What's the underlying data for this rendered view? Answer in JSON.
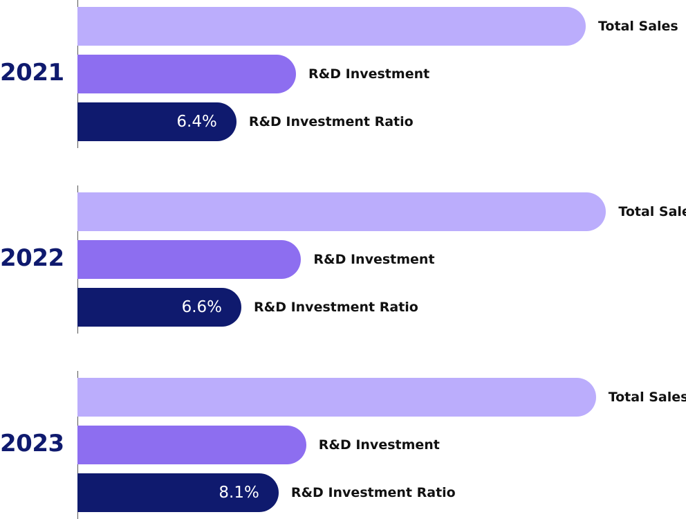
{
  "chart_data": {
    "type": "bar",
    "orientation": "horizontal",
    "groups": [
      "2021",
      "2022",
      "2023"
    ],
    "series": [
      {
        "name": "Total Sales",
        "color": "#bbadfc"
      },
      {
        "name": "R&D Investment",
        "color": "#8d6ef0"
      },
      {
        "name": "R&D Investment Ratio",
        "color": "#0f1a6e"
      }
    ],
    "data": [
      {
        "year": "2021",
        "total_sales": 100,
        "rd_investment": 43,
        "rd_ratio_label": "6.4%",
        "rd_ratio_value": 6.4
      },
      {
        "year": "2022",
        "total_sales": 104,
        "rd_investment": 44,
        "rd_ratio_label": "6.6%",
        "rd_ratio_value": 6.6
      },
      {
        "year": "2023",
        "total_sales": 102,
        "rd_investment": 45,
        "rd_ratio_label": "8.1%",
        "rd_ratio_value": 8.1
      }
    ]
  }
}
